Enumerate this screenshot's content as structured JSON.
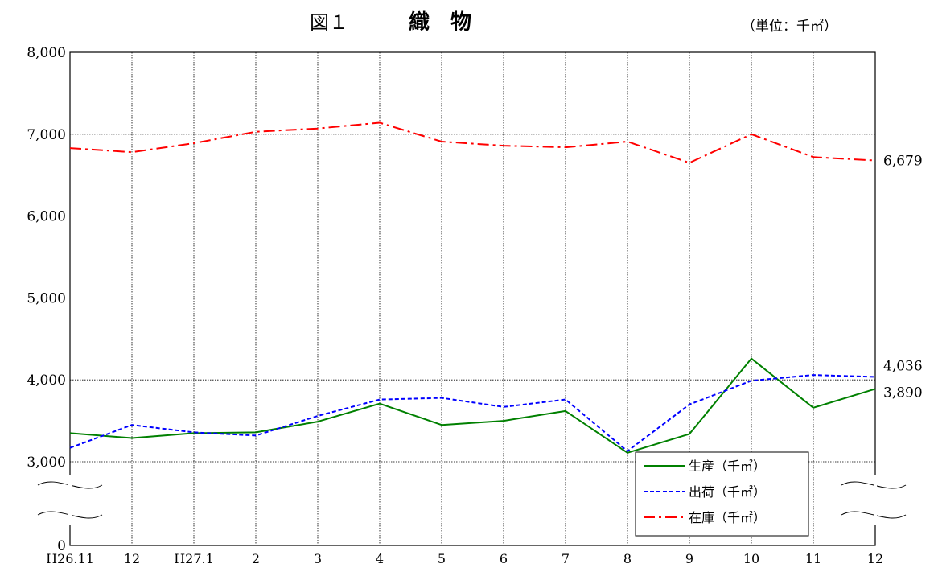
{
  "chart_data": {
    "type": "line",
    "title_prefix": "図１",
    "title": "織　物",
    "unit": "（単位：千㎡）",
    "categories": [
      "H26.11",
      "12",
      "H27.1",
      "2",
      "3",
      "4",
      "5",
      "6",
      "7",
      "8",
      "9",
      "10",
      "11",
      "12"
    ],
    "y_ticks": [
      {
        "value": 0,
        "label": "0"
      },
      {
        "value": 3000,
        "label": "3,000"
      },
      {
        "value": 4000,
        "label": "4,000"
      },
      {
        "value": 5000,
        "label": "5,000"
      },
      {
        "value": 6000,
        "label": "6,000"
      },
      {
        "value": 7000,
        "label": "7,000"
      },
      {
        "value": 8000,
        "label": "8,000"
      }
    ],
    "axis_break": {
      "below": 3000,
      "above": 0
    },
    "ylim": [
      0,
      8000
    ],
    "grid": true,
    "legend_position": "bottom-right",
    "series": [
      {
        "name": "生産（千㎡）",
        "color": "#008000",
        "dash": "solid",
        "values": [
          3350,
          3290,
          3350,
          3360,
          3490,
          3710,
          3450,
          3500,
          3620,
          3110,
          3340,
          4260,
          3660,
          3890
        ],
        "end_label": "3,890"
      },
      {
        "name": "出荷（千㎡）",
        "color": "#0000ff",
        "dash": "dashed",
        "values": [
          3170,
          3450,
          3360,
          3320,
          3560,
          3760,
          3780,
          3670,
          3760,
          3130,
          3700,
          3990,
          4060,
          4036
        ],
        "end_label": "4,036"
      },
      {
        "name": "在庫（千㎡）",
        "color": "#ff0000",
        "dash": "dashdot",
        "values": [
          6830,
          6780,
          6890,
          7030,
          7070,
          7140,
          6910,
          6860,
          6840,
          6910,
          6650,
          7000,
          6720,
          6679
        ],
        "end_label": "6,679"
      }
    ]
  }
}
